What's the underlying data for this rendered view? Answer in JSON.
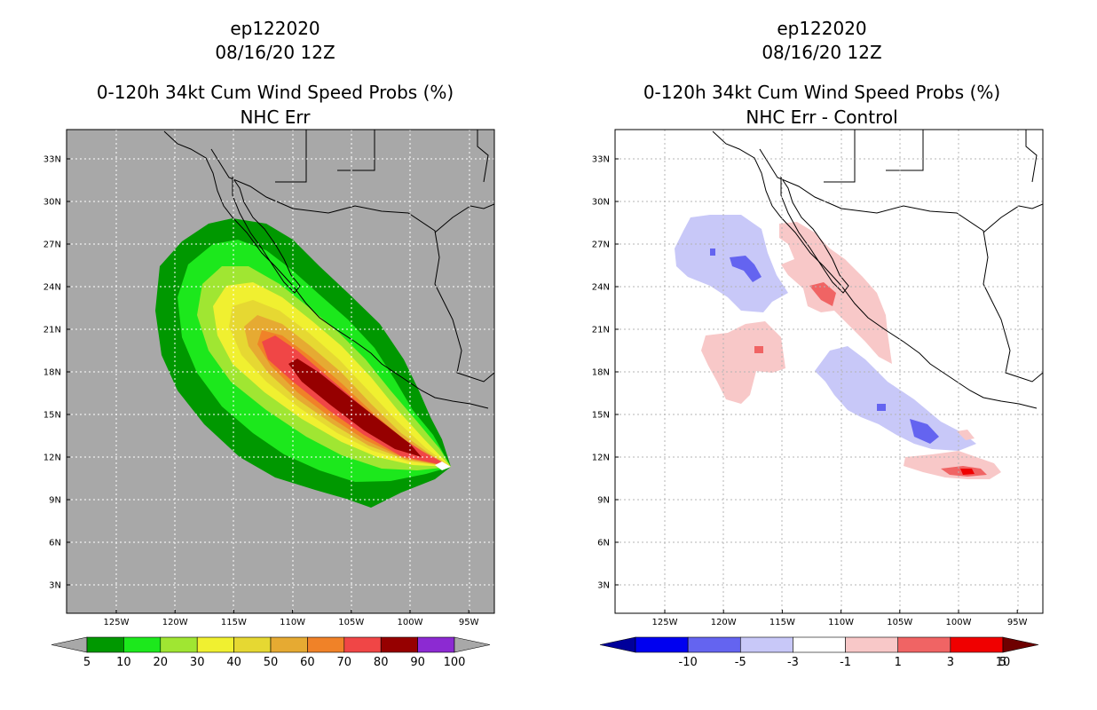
{
  "panels": [
    {
      "id": "left",
      "title": {
        "line1": "ep122020",
        "line2": "08/16/20 12Z",
        "line3": "0-120h 34kt Cum Wind Speed Probs (%)",
        "line4": "NHC Err"
      },
      "background": "#a8a8a8",
      "lat_labels": [
        "3N",
        "6N",
        "9N",
        "12N",
        "15N",
        "18N",
        "21N",
        "24N",
        "27N",
        "30N",
        "33N"
      ],
      "lon_labels": [
        "125W",
        "120W",
        "115W",
        "110W",
        "105W",
        "100W",
        "95W"
      ],
      "colorbar": {
        "type": "triangles_both",
        "labels": [
          "5",
          "10",
          "20",
          "30",
          "40",
          "50",
          "60",
          "70",
          "80",
          "90",
          "100"
        ],
        "colors": [
          "#009800",
          "#1ce81c",
          "#a0e632",
          "#f0f030",
          "#e6d832",
          "#e6aa32",
          "#f08228",
          "#f04646",
          "#960000",
          "#8c2ad2"
        ],
        "end_low": "#a8a8a8",
        "end_high": "#a8a8a8"
      }
    },
    {
      "id": "right",
      "title": {
        "line1": "ep122020",
        "line2": "08/16/20 12Z",
        "line3": "0-120h 34kt Cum Wind Speed Probs (%)",
        "line4": "NHC Err - Control"
      },
      "background": "#ffffff",
      "lat_labels": [
        "3N",
        "6N",
        "9N",
        "12N",
        "15N",
        "18N",
        "21N",
        "24N",
        "27N",
        "30N",
        "33N"
      ],
      "lon_labels": [
        "125W",
        "120W",
        "115W",
        "110W",
        "105W",
        "100W",
        "95W"
      ],
      "colorbar": {
        "type": "triangles_both",
        "labels": [
          "-10",
          "-5",
          "-3",
          "-1",
          "1",
          "3",
          "5",
          "10"
        ],
        "colors": [
          "#0000f0",
          "#6464f0",
          "#c8c8f8",
          "#ffffff",
          "#f8c8c8",
          "#f06464",
          "#f00000"
        ],
        "end_low": "#00009a",
        "end_high": "#6e0000"
      }
    }
  ],
  "chart_data": [
    {
      "type": "heatmap",
      "title": "0-120h 34kt Cum Wind Speed Probs (%) NHC Err",
      "storm": "ep122020",
      "valid": "08/16/20 12Z",
      "x_range": [
        -129,
        -93
      ],
      "y_range": [
        1,
        35
      ],
      "units": "%",
      "contour_levels": [
        5,
        10,
        20,
        30,
        40,
        50,
        60,
        70,
        80,
        90,
        100
      ],
      "description_values": {
        "max_region_prob": "80-90",
        "swath_start": "11.5N 97W",
        "swath_end": "28N 118W"
      }
    },
    {
      "type": "heatmap",
      "title": "0-120h 34kt Cum Wind Speed Probs (%) NHC Err - Control",
      "storm": "ep122020",
      "valid": "08/16/20 12Z",
      "x_range": [
        -129,
        -93
      ],
      "y_range": [
        1,
        35
      ],
      "units": "%",
      "contour_levels": [
        -10,
        -5,
        -3,
        -1,
        1,
        3,
        5,
        10
      ],
      "description_values": {
        "positive_max": "5-10",
        "negative_min": "-5 to -3"
      }
    }
  ]
}
